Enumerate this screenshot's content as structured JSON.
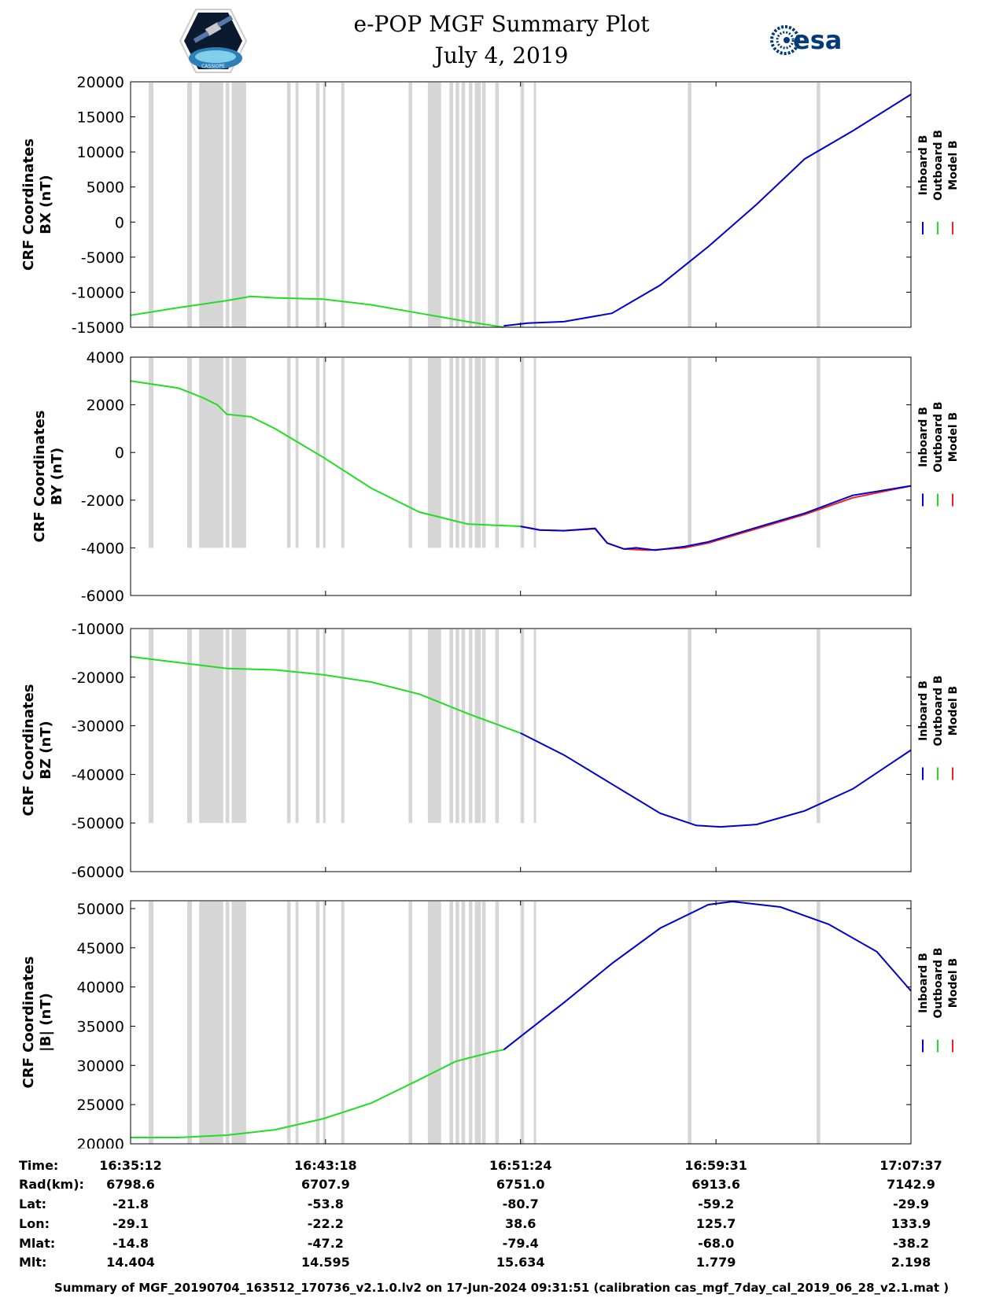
{
  "header": {
    "title": "e-POP MGF Summary Plot",
    "date": "July 4, 2019",
    "left_logo_label": "CASSIOPE",
    "right_logo_label": "esa"
  },
  "legend": {
    "inboard": "Inboard B",
    "outboard": "Outboard B",
    "model": "Model B",
    "inboard_color": "#0000cc",
    "outboard_color": "#22dd22",
    "model_color": "#ee2222"
  },
  "colors": {
    "gap_shading": "#d6d6d6",
    "axis": "#000000"
  },
  "chart_data": [
    {
      "type": "line",
      "ylabel_line1": "CRF Coordinates",
      "ylabel_line2": "BX (nT)",
      "ylim": [
        -15000,
        20000
      ],
      "yticks": [
        "20000",
        "15000",
        "10000",
        "5000",
        "0",
        "-5000",
        "-10000",
        "-15000"
      ],
      "xlim_minutes": [
        0,
        32.42
      ],
      "gap_bar_bottom": -15000,
      "series": [
        {
          "name": "Outboard B",
          "color": "green",
          "x": [
            0,
            2,
            4,
            5,
            6,
            8,
            10,
            12,
            14,
            15.5
          ],
          "y": [
            -13300,
            -12200,
            -11200,
            -10600,
            -10800,
            -11000,
            -11800,
            -13000,
            -14200,
            -15000
          ]
        },
        {
          "name": "Inboard B",
          "color": "blue",
          "x": [
            15.5,
            16.5,
            18,
            20,
            22,
            24,
            26,
            28,
            30,
            32.42
          ],
          "y": [
            -14800,
            -14400,
            -14200,
            -13000,
            -9000,
            -3500,
            2500,
            9000,
            13000,
            18200
          ]
        }
      ]
    },
    {
      "type": "line",
      "ylabel_line1": "CRF Coordinates",
      "ylabel_line2": "BY (nT)",
      "ylim": [
        -6000,
        4000
      ],
      "yticks": [
        "4000",
        "2000",
        "0",
        "-2000",
        "-4000",
        "-6000"
      ],
      "xlim_minutes": [
        0,
        32.42
      ],
      "gap_bar_bottom": -4000,
      "series": [
        {
          "name": "Outboard B",
          "color": "green",
          "x": [
            0,
            2,
            3,
            3.6,
            4,
            5,
            6,
            8,
            10,
            12,
            14,
            16.2
          ],
          "y": [
            3000,
            2700,
            2300,
            2000,
            1600,
            1500,
            1000,
            -200,
            -1500,
            -2500,
            -3000,
            -3100
          ]
        },
        {
          "name": "Model B",
          "color": "red",
          "x": [
            16.2,
            17,
            18,
            19.3,
            19.8,
            20.5,
            21.5,
            23,
            24,
            26,
            28,
            30,
            32.42
          ],
          "y": [
            -3100,
            -3250,
            -3280,
            -3200,
            -3800,
            -4050,
            -4100,
            -4000,
            -3800,
            -3200,
            -2600,
            -1900,
            -1400
          ]
        },
        {
          "name": "Inboard B",
          "color": "blue",
          "x": [
            16.2,
            17,
            18,
            19.3,
            19.8,
            20.5,
            21,
            21.8,
            23,
            24,
            26,
            28,
            30,
            32.42
          ],
          "y": [
            -3100,
            -3250,
            -3280,
            -3180,
            -3800,
            -4050,
            -4000,
            -4100,
            -3950,
            -3750,
            -3150,
            -2550,
            -1800,
            -1400
          ]
        }
      ]
    },
    {
      "type": "line",
      "ylabel_line1": "CRF Coordinates",
      "ylabel_line2": "BZ (nT)",
      "ylim": [
        -60000,
        -10000
      ],
      "yticks": [
        "-10000",
        "-20000",
        "-30000",
        "-40000",
        "-50000",
        "-60000"
      ],
      "xlim_minutes": [
        0,
        32.42
      ],
      "gap_bar_bottom": -50000,
      "series": [
        {
          "name": "Outboard B",
          "color": "green",
          "x": [
            0,
            2,
            4,
            6,
            8,
            10,
            12,
            14,
            16.2
          ],
          "y": [
            -15800,
            -17000,
            -18200,
            -18500,
            -19500,
            -21000,
            -23500,
            -27500,
            -31500
          ]
        },
        {
          "name": "Inboard B",
          "color": "blue",
          "x": [
            16.2,
            18,
            20,
            22,
            23.5,
            24.5,
            26,
            28,
            30,
            32.42
          ],
          "y": [
            -31500,
            -36000,
            -42000,
            -48000,
            -50500,
            -50800,
            -50300,
            -47500,
            -43000,
            -35000
          ]
        }
      ]
    },
    {
      "type": "line",
      "ylabel_line1": "CRF Coordinates",
      "ylabel_line2": "|B| (nT)",
      "ylim": [
        20000,
        51000
      ],
      "yticks": [
        "50000",
        "45000",
        "40000",
        "35000",
        "30000",
        "25000",
        "20000"
      ],
      "xlim_minutes": [
        0,
        32.42
      ],
      "gap_bar_bottom": 20000,
      "series": [
        {
          "name": "Outboard B",
          "color": "green",
          "x": [
            0,
            2,
            4,
            6,
            8,
            10,
            12,
            13.5,
            15,
            15.5
          ],
          "y": [
            20800,
            20800,
            21100,
            21800,
            23200,
            25200,
            28200,
            30500,
            31700,
            32000
          ]
        },
        {
          "name": "Inboard B",
          "color": "blue",
          "x": [
            15.5,
            18,
            20,
            22,
            24,
            25,
            27,
            29,
            31,
            32.42
          ],
          "y": [
            32000,
            38000,
            43000,
            47500,
            50500,
            50900,
            50200,
            48000,
            44500,
            39500
          ]
        }
      ]
    }
  ],
  "gap_intervals_minutes": [
    [
      0.75,
      0.95
    ],
    [
      2.35,
      2.55
    ],
    [
      2.85,
      3.85
    ],
    [
      3.95,
      4.1
    ],
    [
      4.2,
      4.8
    ],
    [
      6.5,
      6.65
    ],
    [
      6.85,
      6.98
    ],
    [
      7.7,
      7.85
    ],
    [
      8.0,
      8.1
    ],
    [
      8.75,
      8.88
    ],
    [
      11.55,
      11.7
    ],
    [
      12.35,
      12.55
    ],
    [
      12.55,
      12.9
    ],
    [
      13.25,
      13.4
    ],
    [
      13.5,
      13.65
    ],
    [
      13.75,
      13.9
    ],
    [
      14.05,
      14.2
    ],
    [
      14.3,
      14.55
    ],
    [
      14.6,
      14.75
    ],
    [
      15.15,
      15.3
    ],
    [
      16.2,
      16.35
    ],
    [
      16.75,
      16.85
    ],
    [
      23.15,
      23.3
    ],
    [
      28.5,
      28.65
    ]
  ],
  "time_axis": {
    "labels": [
      "Time:",
      "Rad(km):",
      "Lat:",
      "Lon:",
      "Mlat:",
      "Mlt:"
    ],
    "columns": [
      [
        "16:35:12",
        "6798.6",
        "-21.8",
        "-29.1",
        "-14.8",
        "14.404"
      ],
      [
        "16:43:18",
        "6707.9",
        "-53.8",
        "-22.2",
        "-47.2",
        "14.595"
      ],
      [
        "16:51:24",
        "6751.0",
        "-80.7",
        "38.6",
        "-79.4",
        "15.634"
      ],
      [
        "16:59:31",
        "6913.6",
        "-59.2",
        "125.7",
        "-68.0",
        "1.779"
      ],
      [
        "17:07:37",
        "7142.9",
        "-29.9",
        "133.9",
        "-38.2",
        "2.198"
      ]
    ]
  },
  "footer": "Summary of MGF_20190704_163512_170736_v2.1.0.lv2 on 17-Jun-2024 09:31:51 (calibration cas_mgf_7day_cal_2019_06_28_v2.1.mat )"
}
